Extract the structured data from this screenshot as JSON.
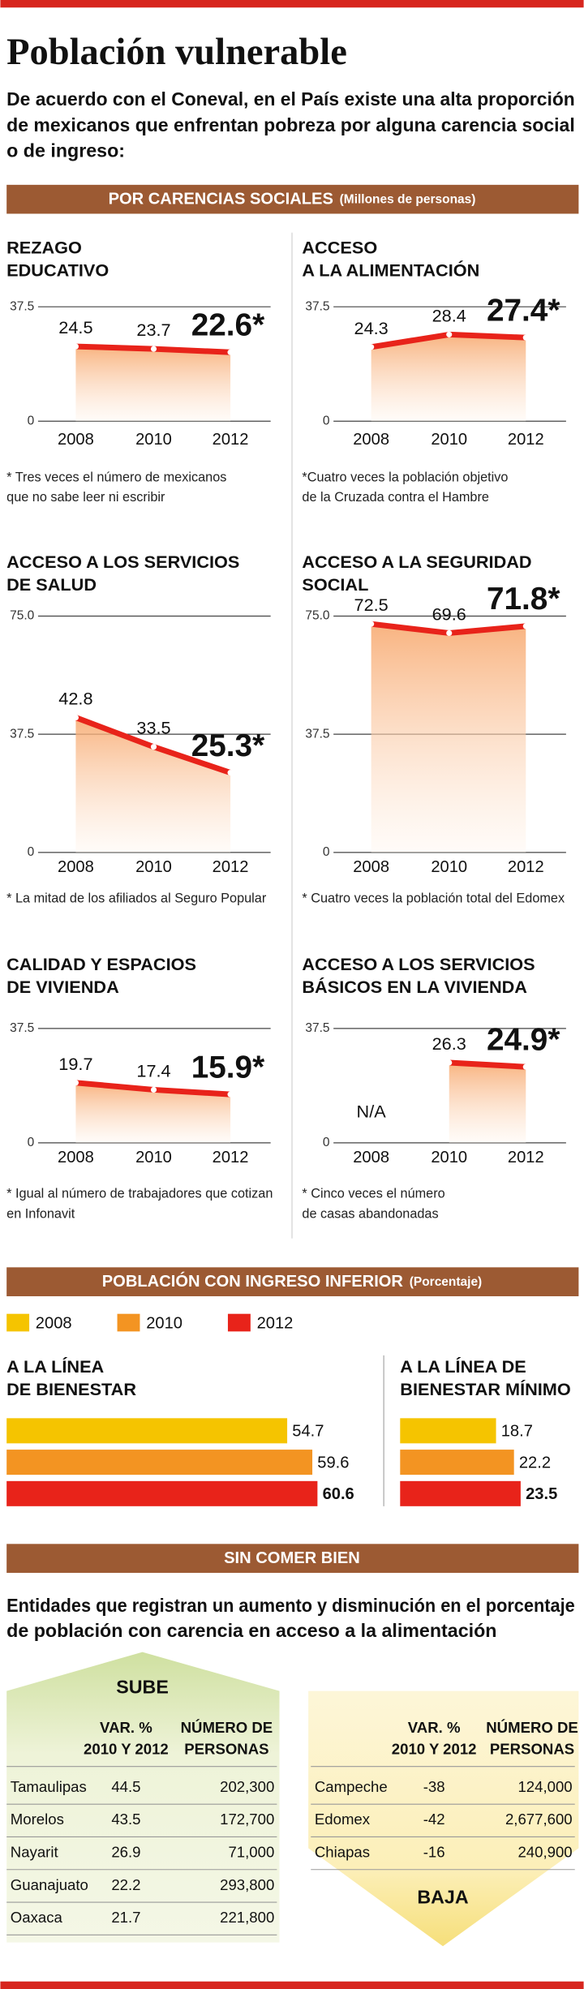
{
  "title": "Población vulnerable",
  "intro": [
    "De acuerdo con el Coneval, en el País existe una alta proporción",
    "de mexicanos que enfrentan pobreza por alguna carencia social",
    "o de ingreso:"
  ],
  "section_carencias": {
    "title": "POR CARENCIAS SOCIALES",
    "unit": "(Millones de personas)"
  },
  "section_ingreso": {
    "title": "POBLACIÓN CON INGRESO INFERIOR",
    "unit": "(Porcentaje)",
    "legend": [
      {
        "name": "2008",
        "color": "#f5c400"
      },
      {
        "name": "2010",
        "color": "#f39422"
      },
      {
        "name": "2012",
        "color": "#e8231a"
      }
    ]
  },
  "section_comer": {
    "title": "SIN COMER BIEN",
    "subtitle": [
      "Entidades que registran un aumento y disminución en el porcentaje",
      "de población con carencia en acceso a la alimentación"
    ]
  },
  "chart_data": [
    {
      "type": "line",
      "title": [
        "REZAGO",
        "EDUCATIVO"
      ],
      "categories": [
        "2008",
        "2010",
        "2012"
      ],
      "values": [
        24.5,
        23.7,
        22.6
      ],
      "value_labels": [
        "24.5",
        "23.7",
        "22.6*"
      ],
      "color": "#e8231a",
      "ylim": [
        0,
        37.5
      ],
      "yticks": [
        0,
        37.5
      ],
      "note": [
        "* Tres veces el número de mexicanos",
        "que no sabe leer ni escribir"
      ]
    },
    {
      "type": "line",
      "title": [
        "ACCESO",
        "A LA ALIMENTACIÓN"
      ],
      "categories": [
        "2008",
        "2010",
        "2012"
      ],
      "values": [
        24.3,
        28.4,
        27.4
      ],
      "value_labels": [
        "24.3",
        "28.4",
        "27.4*"
      ],
      "color": "#e8231a",
      "ylim": [
        0,
        37.5
      ],
      "yticks": [
        0,
        37.5
      ],
      "note": [
        "*Cuatro veces la población objetivo",
        "de la Cruzada contra el Hambre"
      ]
    },
    {
      "type": "line",
      "title": [
        "ACCESO A LOS SERVICIOS",
        "DE SALUD"
      ],
      "categories": [
        "2008",
        "2010",
        "2012"
      ],
      "values": [
        42.8,
        33.5,
        25.3
      ],
      "value_labels": [
        "42.8",
        "33.5",
        "25.3*"
      ],
      "color": "#e8231a",
      "ylim": [
        0,
        75
      ],
      "yticks": [
        0,
        37.5,
        {
          "value": 75,
          "label": "75.0"
        }
      ],
      "note": [
        "* La mitad de los afiliados al Seguro Popular"
      ]
    },
    {
      "type": "line",
      "title": [
        "ACCESO A LA SEGURIDAD",
        "SOCIAL"
      ],
      "categories": [
        "2008",
        "2010",
        "2012"
      ],
      "values": [
        72.5,
        69.6,
        71.8
      ],
      "value_labels": [
        "72.5",
        "69.6",
        "71.8*"
      ],
      "color": "#e8231a",
      "ylim": [
        0,
        75
      ],
      "yticks": [
        0,
        37.5,
        {
          "value": 75,
          "label": "75.0"
        }
      ],
      "note": [
        "* Cuatro veces la población total del Edomex"
      ]
    },
    {
      "type": "line",
      "title": [
        "CALIDAD Y ESPACIOS",
        "DE VIVIENDA"
      ],
      "categories": [
        "2008",
        "2010",
        "2012"
      ],
      "values": [
        19.7,
        17.4,
        15.9
      ],
      "value_labels": [
        "19.7",
        "17.4",
        "15.9*"
      ],
      "color": "#e8231a",
      "ylim": [
        0,
        37.5
      ],
      "yticks": [
        0,
        37.5
      ],
      "note": [
        "* Igual al número de trabajadores que cotizan",
        "en Infonavit"
      ]
    },
    {
      "type": "line",
      "title": [
        "ACCESO A LOS SERVICIOS",
        "BÁSICOS EN LA VIVIENDA"
      ],
      "categories": [
        "2008",
        "2010",
        "2012"
      ],
      "values": [
        null,
        26.3,
        24.9
      ],
      "value_labels": [
        "N/A",
        "26.3",
        "24.9*"
      ],
      "color": "#e8231a",
      "ylim": [
        0,
        37.5
      ],
      "yticks": [
        0,
        37.5
      ],
      "note": [
        "* Cinco veces el número",
        "de casas abandonadas"
      ]
    },
    {
      "type": "bar",
      "title": [
        "A LA LÍNEA",
        "DE BIENESTAR"
      ],
      "values": [
        54.7,
        59.6,
        60.6
      ]
    },
    {
      "type": "bar",
      "title": [
        "A LA LÍNEA DE",
        "BIENESTAR MÍNIMO"
      ],
      "values": [
        18.7,
        22.2,
        23.5
      ]
    }
  ],
  "tables": [
    {
      "label": "SUBE",
      "columns": [
        [
          "VAR. %",
          "2010 Y 2012"
        ],
        [
          "NÚMERO DE",
          "PERSONAS"
        ]
      ],
      "rows": [
        [
          "Tamaulipas",
          "44.5",
          "202,300"
        ],
        [
          "Morelos",
          "43.5",
          "172,700"
        ],
        [
          "Nayarit",
          "26.9",
          "71,000"
        ],
        [
          "Guanajuato",
          "22.2",
          "293,800"
        ],
        [
          "Oaxaca",
          "21.7",
          "221,800"
        ]
      ]
    },
    {
      "label": "BAJA",
      "columns": [
        [
          "VAR. %",
          "2010 Y 2012"
        ],
        [
          "NÚMERO DE",
          "PERSONAS"
        ]
      ],
      "rows": [
        [
          "Campeche",
          "-38",
          "124,000"
        ],
        [
          "Edomex",
          "-42",
          "2,677,600"
        ],
        [
          "Chiapas",
          "-16",
          "240,900"
        ]
      ]
    }
  ]
}
